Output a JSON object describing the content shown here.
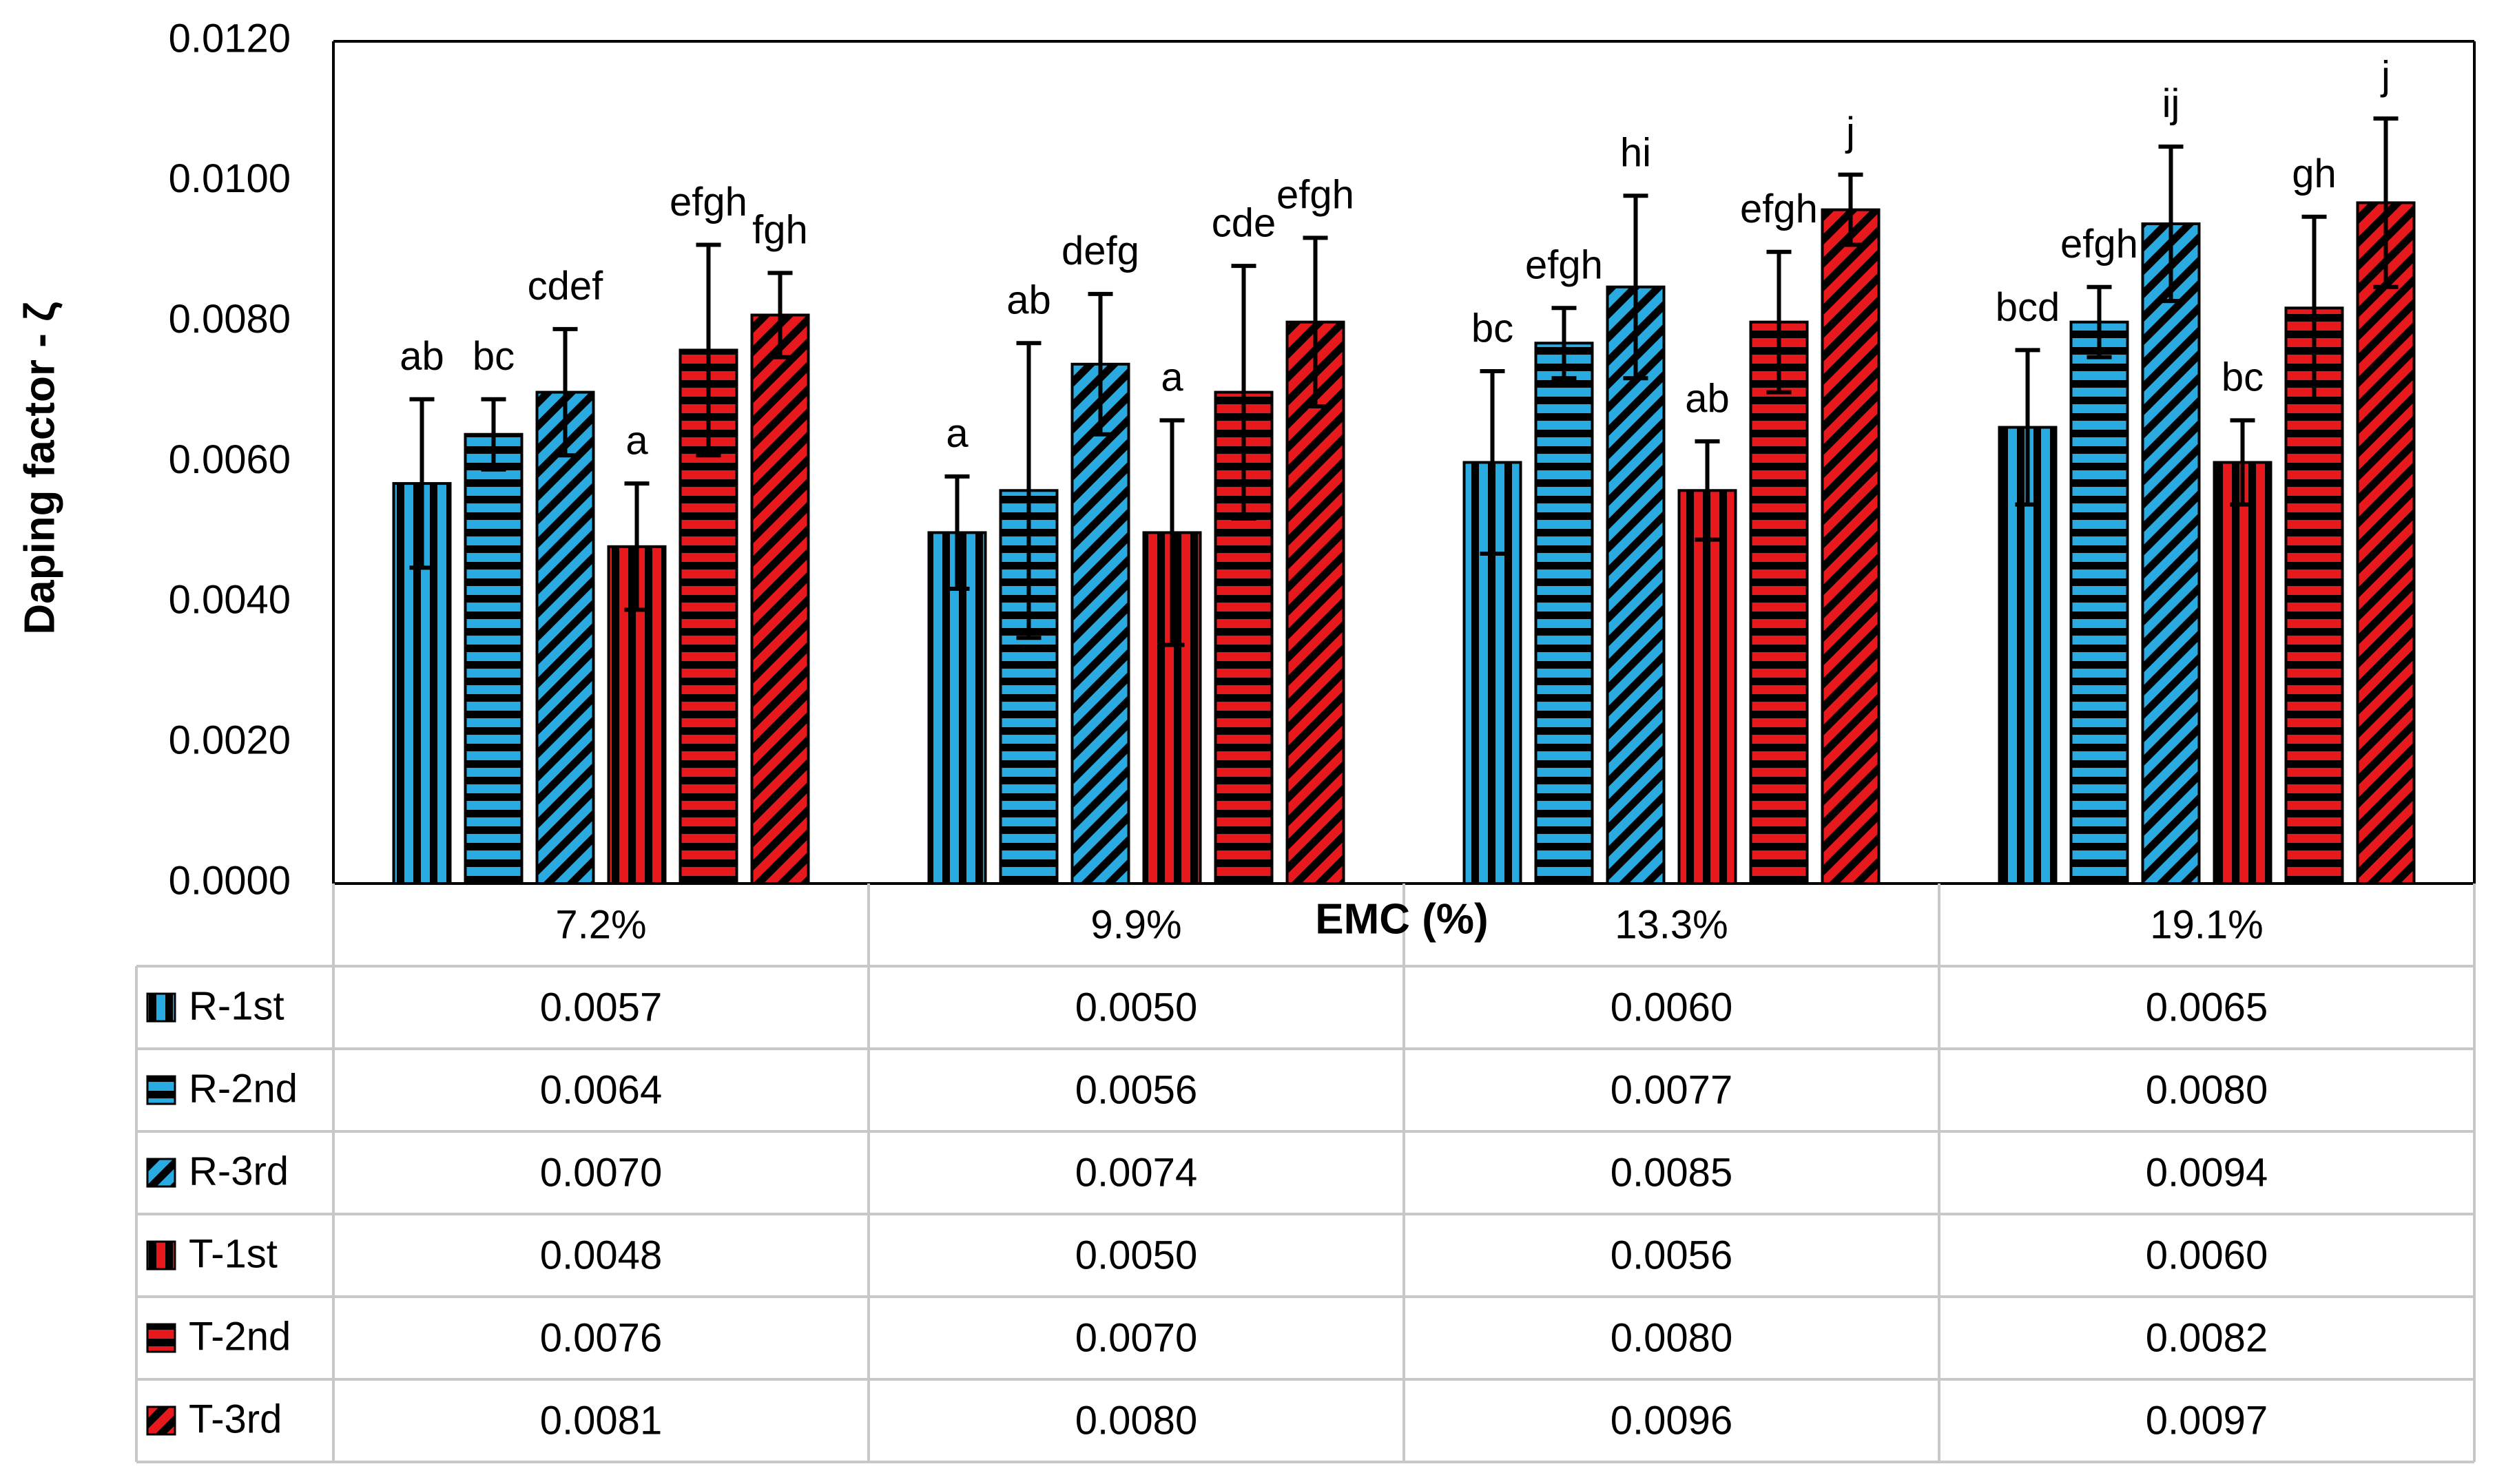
{
  "chart_data": {
    "type": "bar",
    "ylabel": "Daping factor - ζ",
    "xlabel": "EMC (%)",
    "ylim": [
      0,
      0.012
    ],
    "yticks": [
      "0.0000",
      "0.0020",
      "0.0040",
      "0.0060",
      "0.0080",
      "0.0100",
      "0.0120"
    ],
    "categories": [
      "7.2%",
      "9.9%",
      "13.3%",
      "19.1%"
    ],
    "grid": false,
    "legend": "data-table",
    "series": [
      {
        "name": "R-1st",
        "color": "#29ABE2",
        "pattern": "vertical",
        "values": [
          0.0057,
          0.005,
          0.006,
          0.0065
        ],
        "value_labels": [
          "0.0057",
          "0.0050",
          "0.0060",
          "0.0065"
        ],
        "errors": [
          0.0012,
          0.0008,
          0.0013,
          0.0011
        ],
        "letters": [
          "ab",
          "a",
          "bc",
          "bcd"
        ]
      },
      {
        "name": "R-2nd",
        "color": "#29ABE2",
        "pattern": "horizontal",
        "values": [
          0.0064,
          0.0056,
          0.0077,
          0.008
        ],
        "value_labels": [
          "0.0064",
          "0.0056",
          "0.0077",
          "0.0080"
        ],
        "errors": [
          0.0005,
          0.0021,
          0.0005,
          0.0005
        ],
        "letters": [
          "bc",
          "ab",
          "efgh",
          "efgh"
        ]
      },
      {
        "name": "R-3rd",
        "color": "#29ABE2",
        "pattern": "diagonal",
        "values": [
          0.007,
          0.0074,
          0.0085,
          0.0094
        ],
        "value_labels": [
          "0.0070",
          "0.0074",
          "0.0085",
          "0.0094"
        ],
        "errors": [
          0.0009,
          0.001,
          0.0013,
          0.0011
        ],
        "letters": [
          "cdef",
          "defg",
          "hi",
          "ij"
        ]
      },
      {
        "name": "T-1st",
        "color": "#E8191C",
        "pattern": "vertical",
        "values": [
          0.0048,
          0.005,
          0.0056,
          0.006
        ],
        "value_labels": [
          "0.0048",
          "0.0050",
          "0.0056",
          "0.0060"
        ],
        "errors": [
          0.0009,
          0.0016,
          0.0007,
          0.0006
        ],
        "letters": [
          "a",
          "a",
          "ab",
          "bc"
        ]
      },
      {
        "name": "T-2nd",
        "color": "#E8191C",
        "pattern": "horizontal",
        "values": [
          0.0076,
          0.007,
          0.008,
          0.0082
        ],
        "value_labels": [
          "0.0076",
          "0.0070",
          "0.0080",
          "0.0082"
        ],
        "errors": [
          0.0015,
          0.0018,
          0.001,
          0.0013
        ],
        "letters": [
          "efgh",
          "cde",
          "efgh",
          "gh"
        ]
      },
      {
        "name": "T-3rd",
        "color": "#E8191C",
        "pattern": "diagonal",
        "values": [
          0.0081,
          0.008,
          0.0096,
          0.0097
        ],
        "value_labels": [
          "0.0081",
          "0.0080",
          "0.0096",
          "0.0097"
        ],
        "errors": [
          0.0006,
          0.0012,
          0.0005,
          0.0012
        ],
        "letters": [
          "fgh",
          "efgh",
          "j",
          "j"
        ]
      }
    ]
  }
}
